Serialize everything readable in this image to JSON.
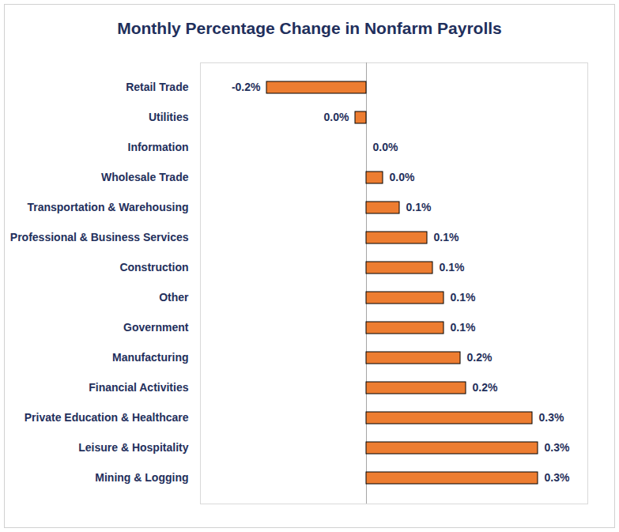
{
  "chart_data": {
    "type": "bar",
    "title": "Monthly Percentage Change in Nonfarm Payrolls",
    "orientation": "horizontal",
    "categories": [
      "Retail Trade",
      "Utilities",
      "Information",
      "Wholesale Trade",
      "Transportation & Warehousing",
      "Professional & Business Services",
      "Construction",
      "Other",
      "Government",
      "Manufacturing",
      "Financial Activities",
      "Private Education & Healthcare",
      "Leisure & Hospitality",
      "Mining & Logging"
    ],
    "values": [
      -0.18,
      -0.02,
      0.0,
      0.03,
      0.06,
      0.11,
      0.12,
      0.14,
      0.14,
      0.17,
      0.18,
      0.3,
      0.31,
      0.31
    ],
    "value_labels": [
      "-0.2%",
      "0.0%",
      "0.0%",
      "0.0%",
      "0.1%",
      "0.1%",
      "0.1%",
      "0.1%",
      "0.1%",
      "0.2%",
      "0.2%",
      "0.3%",
      "0.3%",
      "0.3%"
    ],
    "data_labels": true,
    "color": "#ed7d31",
    "xlim": [
      -0.3,
      0.4
    ],
    "xticks": [
      0
    ],
    "tick_labels": "y",
    "grid": false
  }
}
